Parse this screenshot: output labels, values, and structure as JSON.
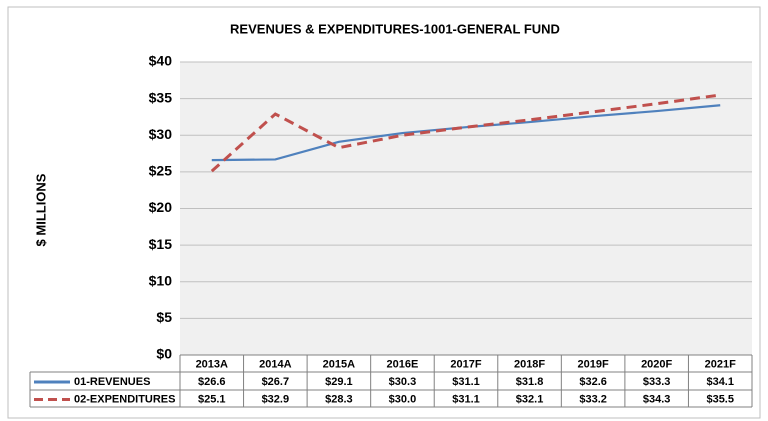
{
  "chart_data": {
    "type": "line",
    "title": "REVENUES & EXPENDITURES-1001-GENERAL FUND",
    "y_label": "$ MILLIONS",
    "categories": [
      "2013A",
      "2014A",
      "2015A",
      "2016E",
      "2017F",
      "2018F",
      "2019F",
      "2020F",
      "2021F"
    ],
    "series": [
      {
        "name": "01-REVENUES",
        "color": "#4f81bd",
        "style": "solid",
        "values": [
          26.6,
          26.7,
          29.1,
          30.3,
          31.1,
          31.8,
          32.6,
          33.3,
          34.1
        ],
        "value_labels": [
          "$26.6",
          "$26.7",
          "$29.1",
          "$30.3",
          "$31.1",
          "$31.8",
          "$32.6",
          "$33.3",
          "$34.1"
        ]
      },
      {
        "name": "02-EXPENDITURES",
        "color": "#c0504d",
        "style": "dashed",
        "values": [
          25.1,
          32.9,
          28.3,
          30.0,
          31.1,
          32.1,
          33.2,
          34.3,
          35.5
        ],
        "value_labels": [
          "$25.1",
          "$32.9",
          "$28.3",
          "$30.0",
          "$31.1",
          "$32.1",
          "$33.2",
          "$34.3",
          "$35.5"
        ]
      }
    ],
    "ylim": [
      0,
      40
    ],
    "yticks": [
      {
        "value": 0,
        "label": "$0"
      },
      {
        "value": 5,
        "label": "$5"
      },
      {
        "value": 10,
        "label": "$10"
      },
      {
        "value": 15,
        "label": "$15"
      },
      {
        "value": 20,
        "label": "$20"
      },
      {
        "value": 25,
        "label": "$25"
      },
      {
        "value": 30,
        "label": "$30"
      },
      {
        "value": 35,
        "label": "$35"
      },
      {
        "value": 40,
        "label": "$40"
      }
    ],
    "grid": true
  }
}
